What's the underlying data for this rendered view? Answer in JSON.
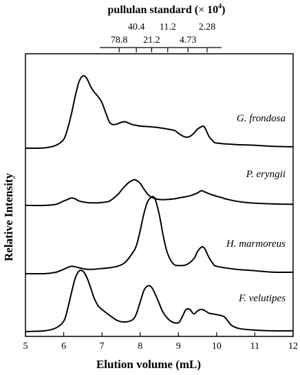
{
  "chart_data": {
    "type": "line",
    "xlabel": "Elution volume (mL)",
    "ylabel": "Relative Intensity",
    "xlim": [
      5,
      12
    ],
    "x_ticks": [
      5,
      6,
      7,
      8,
      9,
      10,
      11,
      12
    ],
    "x_tick_labels": [
      "5",
      "6",
      "7",
      "8",
      "9",
      "10",
      "11",
      "12"
    ],
    "grid": false,
    "legend": "none",
    "top_axis": {
      "title_main": "pullulan standard (",
      "title_times": "×",
      "title_base": " 10",
      "title_exp": "4",
      "title_close": ")",
      "standards": [
        {
          "label": "78.8",
          "x": 7.45,
          "row": "lower"
        },
        {
          "label": "40.4",
          "x": 7.9,
          "row": "upper"
        },
        {
          "label": "21.2",
          "x": 8.3,
          "row": "lower"
        },
        {
          "label": "11.2",
          "x": 8.72,
          "row": "upper"
        },
        {
          "label": "4.73",
          "x": 9.25,
          "row": "lower"
        },
        {
          "label": "2.28",
          "x": 9.75,
          "row": "upper"
        }
      ]
    },
    "series": [
      {
        "name": "G. frondosa",
        "x": [
          5.0,
          5.5,
          5.8,
          6.0,
          6.1,
          6.2,
          6.3,
          6.4,
          6.5,
          6.6,
          6.7,
          6.8,
          6.9,
          7.0,
          7.1,
          7.2,
          7.3,
          7.4,
          7.5,
          7.6,
          7.7,
          7.8,
          7.9,
          8.0,
          8.3,
          8.6,
          8.9,
          9.0,
          9.1,
          9.2,
          9.3,
          9.4,
          9.5,
          9.6,
          9.65,
          9.7,
          9.8,
          9.9,
          10.0,
          10.5,
          11.0,
          11.5,
          12.0
        ],
        "y": [
          0.0,
          0.005,
          0.04,
          0.12,
          0.26,
          0.46,
          0.7,
          0.9,
          0.98,
          0.95,
          0.84,
          0.76,
          0.7,
          0.62,
          0.48,
          0.35,
          0.32,
          0.33,
          0.35,
          0.36,
          0.34,
          0.32,
          0.31,
          0.3,
          0.29,
          0.27,
          0.24,
          0.2,
          0.17,
          0.15,
          0.16,
          0.2,
          0.26,
          0.29,
          0.3,
          0.27,
          0.16,
          0.1,
          0.07,
          0.05,
          0.04,
          0.025,
          0.02
        ]
      },
      {
        "name": "P. eryngii",
        "x": [
          5.0,
          5.5,
          5.8,
          6.0,
          6.1,
          6.2,
          6.3,
          6.4,
          6.6,
          6.8,
          7.0,
          7.2,
          7.4,
          7.5,
          7.6,
          7.7,
          7.8,
          7.85,
          7.9,
          8.0,
          8.1,
          8.2,
          8.3,
          8.5,
          8.7,
          8.9,
          9.1,
          9.3,
          9.5,
          9.6,
          9.7,
          9.9,
          10.1,
          10.3,
          10.6,
          11.0,
          11.5,
          12.0
        ],
        "y": [
          0.0,
          0.0,
          0.015,
          0.06,
          0.08,
          0.1,
          0.09,
          0.06,
          0.04,
          0.035,
          0.04,
          0.06,
          0.14,
          0.2,
          0.26,
          0.31,
          0.34,
          0.35,
          0.34,
          0.3,
          0.22,
          0.15,
          0.11,
          0.08,
          0.08,
          0.09,
          0.11,
          0.13,
          0.17,
          0.2,
          0.18,
          0.14,
          0.11,
          0.08,
          0.05,
          0.03,
          0.02,
          0.015
        ]
      },
      {
        "name": "H. marmoreus",
        "x": [
          5.0,
          5.5,
          5.8,
          6.0,
          6.2,
          6.4,
          6.6,
          6.8,
          7.0,
          7.2,
          7.4,
          7.6,
          7.8,
          7.9,
          8.0,
          8.1,
          8.2,
          8.3,
          8.35,
          8.4,
          8.5,
          8.6,
          8.7,
          8.8,
          8.9,
          9.0,
          9.2,
          9.4,
          9.5,
          9.6,
          9.65,
          9.7,
          9.8,
          9.9,
          10.0,
          10.5,
          11.0,
          11.5,
          12.0
        ],
        "y": [
          0.0,
          0.0,
          0.02,
          0.06,
          0.1,
          0.08,
          0.06,
          0.06,
          0.07,
          0.08,
          0.1,
          0.15,
          0.28,
          0.38,
          0.58,
          0.82,
          0.98,
          1.04,
          1.04,
          1.0,
          0.8,
          0.52,
          0.3,
          0.18,
          0.12,
          0.11,
          0.12,
          0.2,
          0.3,
          0.36,
          0.36,
          0.33,
          0.22,
          0.14,
          0.1,
          0.06,
          0.04,
          0.02,
          0.02
        ]
      },
      {
        "name": "F. velutipes",
        "x": [
          5.0,
          5.5,
          5.8,
          6.0,
          6.1,
          6.2,
          6.3,
          6.4,
          6.5,
          6.6,
          6.7,
          6.8,
          6.9,
          7.0,
          7.2,
          7.4,
          7.6,
          7.8,
          7.9,
          8.0,
          8.1,
          8.2,
          8.3,
          8.4,
          8.5,
          8.6,
          8.8,
          9.0,
          9.1,
          9.2,
          9.3,
          9.4,
          9.5,
          9.6,
          9.7,
          9.8,
          9.9,
          10.0,
          10.1,
          10.2,
          10.3,
          10.4,
          10.6,
          11.0,
          11.5,
          12.0
        ],
        "y": [
          0.0,
          0.01,
          0.05,
          0.14,
          0.3,
          0.52,
          0.72,
          0.82,
          0.82,
          0.74,
          0.6,
          0.45,
          0.35,
          0.3,
          0.22,
          0.15,
          0.13,
          0.16,
          0.24,
          0.4,
          0.56,
          0.62,
          0.6,
          0.5,
          0.38,
          0.26,
          0.14,
          0.12,
          0.2,
          0.3,
          0.3,
          0.24,
          0.28,
          0.3,
          0.28,
          0.25,
          0.24,
          0.23,
          0.22,
          0.2,
          0.14,
          0.08,
          0.04,
          0.02,
          0.01,
          0.01
        ]
      }
    ]
  }
}
